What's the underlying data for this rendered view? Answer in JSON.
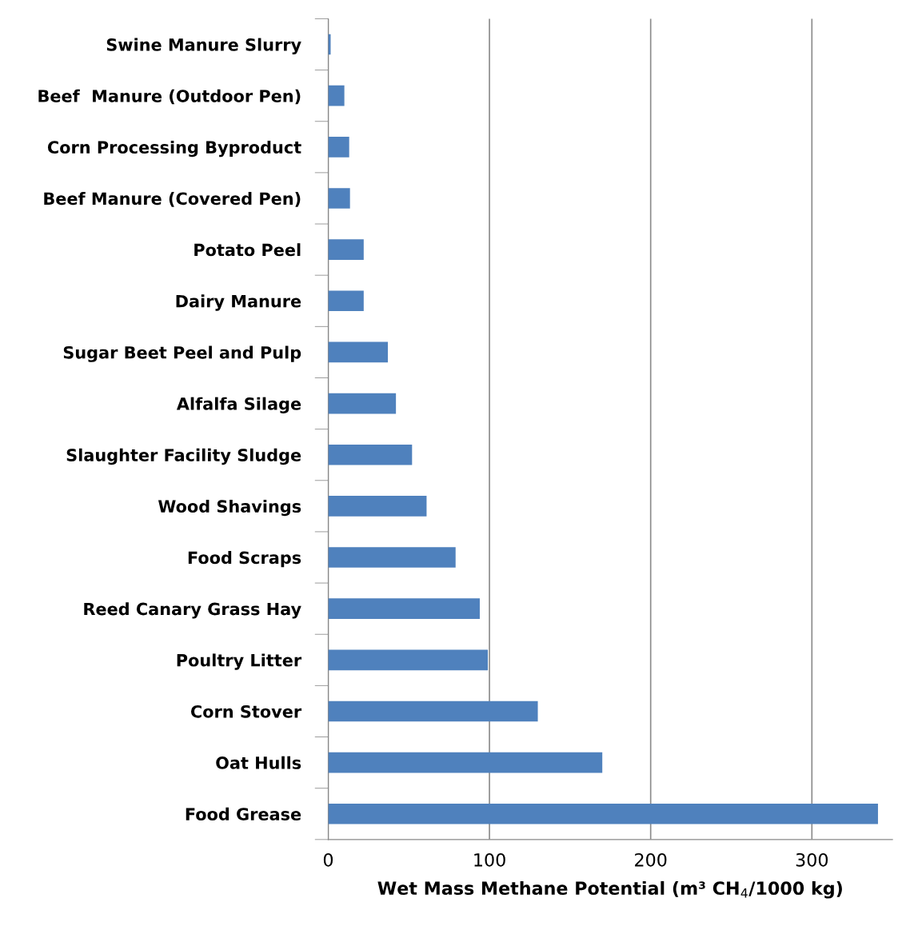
{
  "chart_data": {
    "type": "bar",
    "orientation": "horizontal",
    "xlabel": "Wet Mass Methane Potential (m³ CH$_{4}$/1000 kg)",
    "categories": [
      "Swine Manure Slurry",
      "Beef  Manure (Outdoor Pen)",
      "Corn Processing Byproduct",
      "Beef Manure (Covered Pen)",
      "Potato Peel",
      "Dairy Manure",
      "Sugar Beet Peel and Pulp",
      "Alfalfa Silage",
      "Slaughter Facility Sludge",
      "Wood Shavings",
      "Food Scraps",
      "Reed Canary Grass Hay",
      "Poultry Litter",
      "Corn Stover",
      "Oat Hulls",
      "Food Grease"
    ],
    "values": [
      1.5,
      10,
      13,
      13.5,
      22,
      22,
      37,
      42,
      52,
      61,
      79,
      94,
      99,
      130,
      170,
      341
    ],
    "color": "#4f81bd",
    "xlim": [
      0,
      350
    ],
    "xticks": [
      0,
      100,
      200,
      300
    ],
    "grid": "x"
  }
}
